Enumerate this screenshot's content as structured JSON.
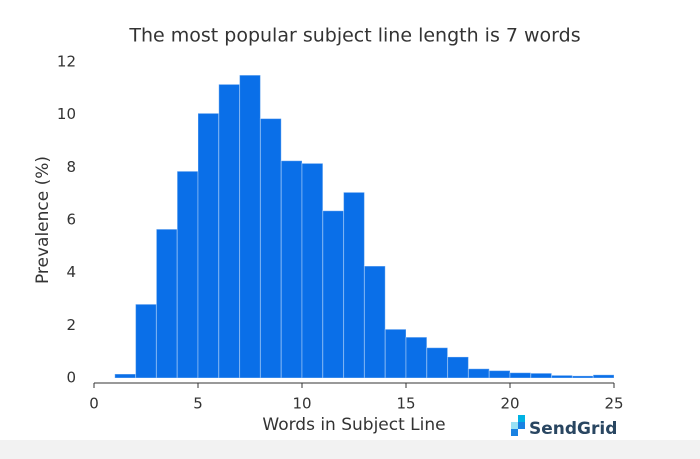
{
  "chart_data": {
    "type": "histogram",
    "title": "The most popular subject line length is 7 words",
    "x_label": "Words in Subject Line",
    "y_label": "Prevalence (%)",
    "source": "SendGrid",
    "bins": [
      1,
      2,
      3,
      4,
      5,
      6,
      7,
      8,
      9,
      10,
      11,
      12,
      13,
      14,
      15,
      16,
      17,
      18,
      19,
      20,
      21,
      22,
      23,
      24,
      25
    ],
    "values": [
      0.15,
      2.8,
      5.65,
      7.85,
      10.05,
      11.15,
      11.5,
      9.85,
      8.25,
      8.15,
      6.35,
      7.05,
      4.25,
      1.85,
      1.55,
      1.15,
      0.8,
      0.35,
      0.28,
      0.2,
      0.18,
      0.1,
      0.08,
      0.12
    ],
    "color": "#0a6fe8",
    "xlim": [
      0,
      25
    ],
    "ylim": [
      0,
      12
    ],
    "xticks": [
      0,
      5,
      10,
      15,
      20,
      25
    ],
    "yticks": [
      0,
      2,
      4,
      6,
      8,
      10,
      12
    ]
  }
}
